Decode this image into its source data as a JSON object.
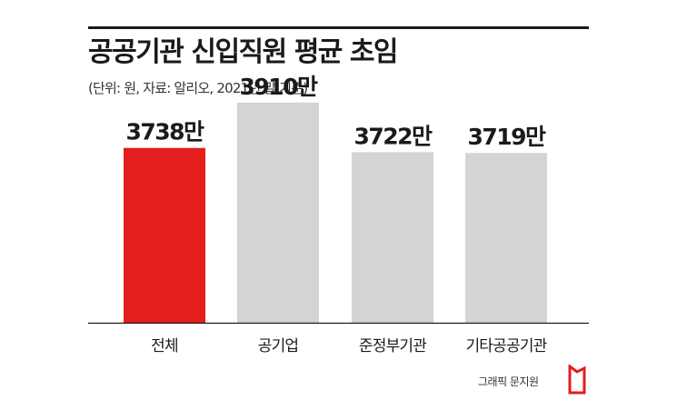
{
  "title": "공공기관 신입직원 평균 초임",
  "subtitle": "(단위: 원, 자료: 알리오, 2021년 말 기준)",
  "credit": "그래픽 문지원",
  "colors": {
    "highlight": "#e41d1d",
    "bar": "#d4d4d4",
    "axis": "#1a1a1a"
  },
  "chart_data": {
    "type": "bar",
    "categories": [
      "전체",
      "공기업",
      "준정부기관",
      "기타공공기관"
    ],
    "values": [
      3738,
      3910,
      3722,
      3719
    ],
    "value_labels": [
      "3738만",
      "3910만",
      "3722만",
      "3719만"
    ],
    "title": "공공기관 신입직원 평균 초임",
    "subtitle": "(단위: 원, 자료: 알리오, 2021년 말 기준)",
    "xlabel": "",
    "ylabel": "",
    "highlight_index": 0,
    "grid": false,
    "legend": "none"
  }
}
